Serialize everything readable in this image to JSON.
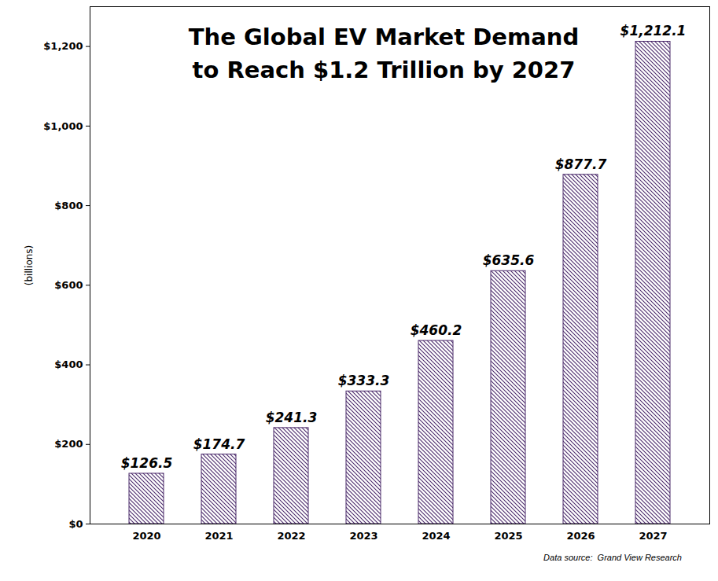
{
  "chart_data": {
    "type": "bar",
    "title": "The Global EV Market Demand\nto Reach $1.2 Trillion by 2027",
    "y_label": "(billions)",
    "caption": "Data source:  Grand View Research",
    "categories": [
      "2020",
      "2021",
      "2022",
      "2023",
      "2024",
      "2025",
      "2026",
      "2027"
    ],
    "values": [
      126.5,
      174.7,
      241.3,
      333.3,
      460.2,
      635.6,
      877.7,
      1212.1
    ],
    "value_labels": [
      "$126.5",
      "$174.7",
      "$241.3",
      "$333.3",
      "$460.2",
      "$635.6",
      "$877.7",
      "$1,212.1"
    ],
    "color": "#4b2a6b",
    "data_labels": true,
    "grid": false,
    "ylim": [
      0,
      1300
    ],
    "yticks": [
      {
        "value": 0,
        "label": "$0"
      },
      {
        "value": 200,
        "label": "$200"
      },
      {
        "value": 400,
        "label": "$400"
      },
      {
        "value": 600,
        "label": "$600"
      },
      {
        "value": 800,
        "label": "$800"
      },
      {
        "value": 1000,
        "label": "$1,000"
      },
      {
        "value": 1200,
        "label": "$1,200"
      }
    ]
  }
}
